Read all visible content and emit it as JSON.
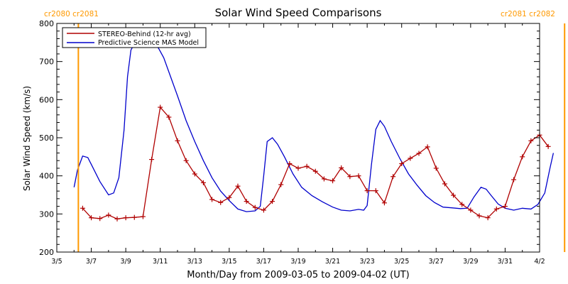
{
  "chart_data": {
    "type": "line",
    "title": "Solar Wind Speed Comparisons",
    "xlabel": "Month/Day from 2009-03-05 to 2009-04-02 (UT)",
    "ylabel": "Solar Wind Speed (km/s)",
    "xlim": [
      0,
      28
    ],
    "ylim": [
      200,
      800
    ],
    "grid": false,
    "legend_position": "top-left",
    "x_ticks": [
      {
        "day": 0,
        "label": "3/5"
      },
      {
        "day": 2,
        "label": "3/7"
      },
      {
        "day": 4,
        "label": "3/9"
      },
      {
        "day": 6,
        "label": "3/11"
      },
      {
        "day": 8,
        "label": "3/13"
      },
      {
        "day": 10,
        "label": "3/15"
      },
      {
        "day": 12,
        "label": "3/17"
      },
      {
        "day": 14,
        "label": "3/19"
      },
      {
        "day": 16,
        "label": "3/21"
      },
      {
        "day": 18,
        "label": "3/23"
      },
      {
        "day": 20,
        "label": "3/25"
      },
      {
        "day": 22,
        "label": "3/27"
      },
      {
        "day": 24,
        "label": "3/29"
      },
      {
        "day": 26,
        "label": "3/31"
      },
      {
        "day": 28,
        "label": "4/2"
      }
    ],
    "y_ticks": [
      "200",
      "300",
      "400",
      "500",
      "600",
      "700",
      "800"
    ],
    "carrington_markers": [
      {
        "day": 1.25,
        "label": "cr2080 cr2081",
        "color": "#ff9900"
      },
      {
        "day": 29.45,
        "label": "cr2081 cr2082",
        "color": "#ff9900"
      }
    ],
    "series": [
      {
        "name": "STEREO-Behind (12-hr avg)",
        "color": "#b00000",
        "markers": true,
        "points": [
          [
            1.5,
            315
          ],
          [
            2.0,
            290
          ],
          [
            2.5,
            288
          ],
          [
            3.0,
            297
          ],
          [
            3.5,
            287
          ],
          [
            4.0,
            290
          ],
          [
            4.5,
            291
          ],
          [
            5.0,
            293
          ],
          [
            5.5,
            443
          ],
          [
            6.0,
            580
          ],
          [
            6.5,
            554
          ],
          [
            7.0,
            492
          ],
          [
            7.5,
            440
          ],
          [
            8.0,
            405
          ],
          [
            8.5,
            382
          ],
          [
            9.0,
            338
          ],
          [
            9.5,
            330
          ],
          [
            10.0,
            343
          ],
          [
            10.5,
            373
          ],
          [
            11.0,
            333
          ],
          [
            11.5,
            317
          ],
          [
            12.0,
            310
          ],
          [
            12.5,
            333
          ],
          [
            13.0,
            377
          ],
          [
            13.5,
            432
          ],
          [
            14.0,
            420
          ],
          [
            14.5,
            425
          ],
          [
            15.0,
            412
          ],
          [
            15.5,
            392
          ],
          [
            16.0,
            387
          ],
          [
            16.5,
            421
          ],
          [
            17.0,
            398
          ],
          [
            17.5,
            400
          ],
          [
            18.0,
            361
          ],
          [
            18.5,
            361
          ],
          [
            19.0,
            329
          ],
          [
            19.5,
            398
          ],
          [
            20.0,
            432
          ],
          [
            20.5,
            446
          ],
          [
            21.0,
            459
          ],
          [
            21.5,
            476
          ],
          [
            22.0,
            420
          ],
          [
            22.5,
            379
          ],
          [
            23.0,
            349
          ],
          [
            23.5,
            325
          ],
          [
            24.0,
            310
          ],
          [
            24.5,
            295
          ],
          [
            25.0,
            290
          ],
          [
            25.5,
            313
          ],
          [
            26.0,
            320
          ],
          [
            26.5,
            390
          ],
          [
            27.0,
            450
          ],
          [
            27.5,
            492
          ],
          [
            28.0,
            507
          ],
          [
            28.5,
            477
          ]
        ]
      },
      {
        "name": "Predictive Science MAS Model",
        "color": "#0000cc",
        "markers": false,
        "points": [
          [
            1.0,
            370
          ],
          [
            1.2,
            415
          ],
          [
            1.5,
            452
          ],
          [
            1.8,
            448
          ],
          [
            2.0,
            430
          ],
          [
            2.5,
            385
          ],
          [
            3.0,
            350
          ],
          [
            3.3,
            355
          ],
          [
            3.6,
            395
          ],
          [
            3.9,
            520
          ],
          [
            4.1,
            660
          ],
          [
            4.3,
            730
          ],
          [
            4.6,
            755
          ],
          [
            5.0,
            758
          ],
          [
            5.5,
            752
          ],
          [
            5.9,
            735
          ],
          [
            6.2,
            710
          ],
          [
            6.6,
            660
          ],
          [
            7.0,
            610
          ],
          [
            7.5,
            545
          ],
          [
            8.0,
            490
          ],
          [
            8.5,
            440
          ],
          [
            9.0,
            395
          ],
          [
            9.5,
            360
          ],
          [
            10.0,
            335
          ],
          [
            10.5,
            313
          ],
          [
            11.0,
            306
          ],
          [
            11.5,
            308
          ],
          [
            11.8,
            320
          ],
          [
            12.0,
            400
          ],
          [
            12.2,
            490
          ],
          [
            12.5,
            500
          ],
          [
            12.8,
            483
          ],
          [
            13.2,
            450
          ],
          [
            13.7,
            405
          ],
          [
            14.2,
            370
          ],
          [
            14.8,
            348
          ],
          [
            15.4,
            332
          ],
          [
            16.0,
            318
          ],
          [
            16.5,
            310
          ],
          [
            17.0,
            308
          ],
          [
            17.5,
            312
          ],
          [
            17.8,
            310
          ],
          [
            18.0,
            322
          ],
          [
            18.25,
            430
          ],
          [
            18.5,
            522
          ],
          [
            18.75,
            545
          ],
          [
            19.0,
            530
          ],
          [
            19.4,
            490
          ],
          [
            19.9,
            445
          ],
          [
            20.4,
            405
          ],
          [
            20.9,
            375
          ],
          [
            21.4,
            348
          ],
          [
            21.9,
            330
          ],
          [
            22.4,
            318
          ],
          [
            22.9,
            316
          ],
          [
            23.4,
            314
          ],
          [
            23.8,
            315
          ],
          [
            24.2,
            345
          ],
          [
            24.6,
            370
          ],
          [
            24.9,
            365
          ],
          [
            25.2,
            348
          ],
          [
            25.6,
            326
          ],
          [
            26.0,
            315
          ],
          [
            26.5,
            310
          ],
          [
            27.0,
            315
          ],
          [
            27.5,
            313
          ],
          [
            27.9,
            325
          ],
          [
            28.3,
            355
          ],
          [
            28.6,
            420
          ],
          [
            28.8,
            460
          ]
        ]
      }
    ]
  }
}
